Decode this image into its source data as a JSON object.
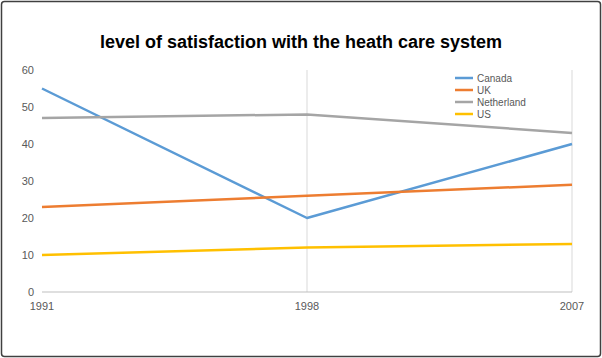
{
  "chart_data": {
    "type": "line",
    "title": "level of satisfaction with the heath care system",
    "categories": [
      "1991",
      "1998",
      "2007"
    ],
    "series": [
      {
        "name": "Canada",
        "color": "#5b9bd5",
        "values": [
          55,
          20,
          40
        ]
      },
      {
        "name": "UK",
        "color": "#ed7d31",
        "values": [
          23,
          26,
          29
        ]
      },
      {
        "name": "Netherland",
        "color": "#a5a5a5",
        "values": [
          47,
          48,
          43
        ]
      },
      {
        "name": "US",
        "color": "#ffc000",
        "values": [
          10,
          12,
          13
        ]
      }
    ],
    "ylim": [
      0,
      60
    ],
    "yticks": [
      0,
      10,
      20,
      30,
      40,
      50,
      60
    ],
    "grid": "x",
    "legend": "upper right"
  }
}
